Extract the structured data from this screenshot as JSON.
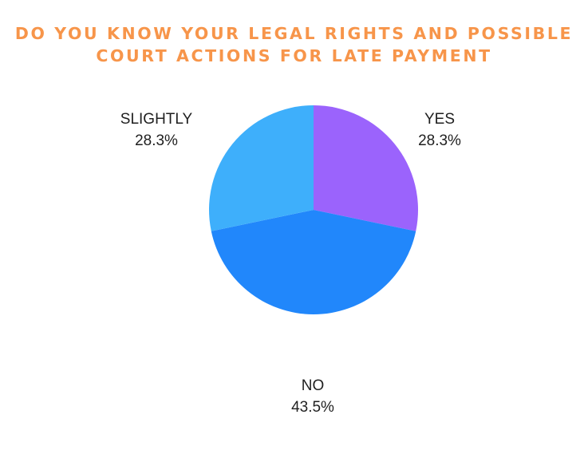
{
  "chart_data": {
    "type": "pie",
    "title_lines": [
      "DO YOU KNOW YOUR LEGAL RIGHTS AND POSSIBLE",
      "COURT ACTIONS FOR LATE PAYMENT"
    ],
    "slices": [
      {
        "label": "YES",
        "value": 28.3,
        "display": "28.3%",
        "color": "#9b63fc"
      },
      {
        "label": "NO",
        "value": 43.5,
        "display": "43.5%",
        "color": "#2187fb"
      },
      {
        "label": "SLIGHTLY",
        "value": 28.3,
        "display": "28.3%",
        "color": "#3eaffb"
      }
    ],
    "legend": "none"
  }
}
